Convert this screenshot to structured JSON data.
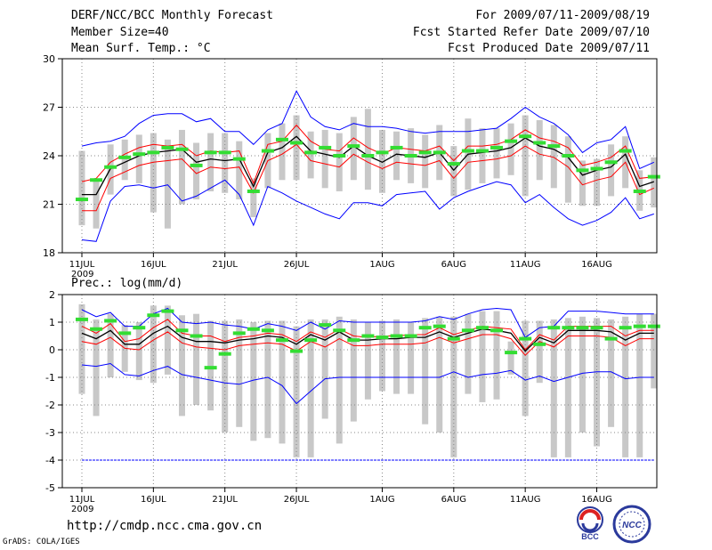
{
  "header": {
    "title": "DERF/NCC/BCC Monthly Forecast",
    "member_size": "Member Size=40",
    "variable": "Mean Surf. Temp.: °C",
    "forecast_period": "For 2009/07/11-2009/08/19",
    "fcst_started": "Fcst Started Refer Date 2009/07/10",
    "fcst_produced": "Fcst Produced Date 2009/07/11"
  },
  "footer": {
    "url": "http://cmdp.ncc.cma.gov.cn",
    "grads": "GrADS: COLA/IGES",
    "logo_bcc": "BCC",
    "logo_ncc": "NCC"
  },
  "colors": {
    "max_line": "#0000ff",
    "min_line": "#0000ff",
    "mean_line": "#000000",
    "spread_lines": "#ff0000",
    "observed": "#33dd33",
    "bars": "#c8c8c8",
    "grid": "#888888"
  },
  "chart_data": [
    {
      "type": "line",
      "title": "Mean Surf. Temp.: °C",
      "ylim": [
        18,
        30
      ],
      "yticks": [
        18,
        21,
        24,
        27,
        30
      ],
      "xticks": [
        {
          "day": 0,
          "label": "11JUL"
        },
        {
          "day": 5,
          "label": "16JUL"
        },
        {
          "day": 10,
          "label": "21JUL"
        },
        {
          "day": 15,
          "label": "26JUL"
        },
        {
          "day": 21,
          "label": "1AUG"
        },
        {
          "day": 26,
          "label": "6AUG"
        },
        {
          "day": 31,
          "label": "11AUG"
        },
        {
          "day": 36,
          "label": "16AUG"
        }
      ],
      "year_label": "2009",
      "series": [
        {
          "name": "max",
          "values": [
            24.6,
            24.8,
            24.9,
            25.2,
            26.0,
            26.5,
            26.6,
            26.6,
            26.1,
            26.3,
            25.5,
            25.5,
            24.7,
            25.6,
            26.0,
            28.0,
            26.4,
            25.8,
            25.6,
            26.0,
            25.8,
            25.8,
            25.7,
            25.5,
            25.4,
            25.5,
            25.5,
            25.5,
            25.6,
            25.7,
            26.3,
            27.0,
            26.4,
            26.0,
            25.3,
            24.2,
            24.8,
            25.0,
            25.8,
            23.2,
            23.6
          ]
        },
        {
          "name": "upper",
          "values": [
            22.4,
            22.6,
            23.6,
            24.1,
            24.5,
            24.7,
            24.6,
            24.7,
            24.0,
            24.3,
            24.2,
            24.3,
            22.3,
            24.7,
            24.9,
            25.9,
            24.9,
            24.4,
            24.3,
            25.1,
            24.5,
            24.1,
            24.5,
            24.4,
            24.3,
            24.6,
            23.7,
            24.6,
            24.6,
            24.7,
            25.0,
            25.6,
            25.1,
            24.9,
            24.5,
            23.4,
            23.6,
            23.9,
            24.6,
            22.6,
            22.7
          ]
        },
        {
          "name": "mean",
          "values": [
            21.6,
            21.6,
            23.2,
            23.6,
            24.0,
            24.2,
            24.3,
            24.4,
            23.6,
            23.8,
            23.7,
            23.8,
            22.1,
            24.2,
            24.5,
            25.2,
            24.3,
            24.1,
            23.9,
            24.6,
            24.0,
            23.6,
            24.1,
            24.0,
            23.9,
            24.2,
            23.1,
            24.1,
            24.2,
            24.3,
            24.5,
            25.1,
            24.6,
            24.4,
            23.9,
            22.8,
            23.1,
            23.3,
            24.1,
            22.1,
            22.4
          ]
        },
        {
          "name": "lower",
          "values": [
            20.6,
            20.6,
            22.6,
            23.0,
            23.4,
            23.6,
            23.7,
            23.8,
            22.9,
            23.3,
            23.2,
            23.3,
            21.7,
            23.7,
            24.1,
            24.7,
            23.7,
            23.5,
            23.3,
            24.1,
            23.6,
            23.2,
            23.6,
            23.5,
            23.4,
            23.7,
            22.6,
            23.6,
            23.7,
            23.8,
            24.0,
            24.6,
            24.1,
            23.9,
            23.3,
            22.2,
            22.5,
            22.7,
            23.6,
            21.6,
            22.0
          ]
        },
        {
          "name": "min",
          "values": [
            18.8,
            18.7,
            21.2,
            22.1,
            22.2,
            22.0,
            22.2,
            21.2,
            21.5,
            22.0,
            22.5,
            21.6,
            19.7,
            22.1,
            21.7,
            21.2,
            20.8,
            20.4,
            20.1,
            21.1,
            21.1,
            20.9,
            21.6,
            21.7,
            21.8,
            20.7,
            21.4,
            21.8,
            22.1,
            22.4,
            22.2,
            21.1,
            21.6,
            20.8,
            20.1,
            19.7,
            20.0,
            20.5,
            21.4,
            20.1,
            20.4
          ]
        },
        {
          "name": "observed",
          "values": [
            21.3,
            22.5,
            23.3,
            23.9,
            24.1,
            24.2,
            24.5,
            24.4,
            23.4,
            24.2,
            24.2,
            23.8,
            21.8,
            24.3,
            25.0,
            24.8,
            24.2,
            24.5,
            24.0,
            24.6,
            24.0,
            24.2,
            24.5,
            24.0,
            24.2,
            24.2,
            23.5,
            24.3,
            24.3,
            24.5,
            24.9,
            25.2,
            24.8,
            24.6,
            24.0,
            23.1,
            23.2,
            23.6,
            24.3,
            21.8,
            22.7
          ]
        }
      ],
      "bars": {
        "low": [
          19.7,
          19.5,
          21.6,
          22.5,
          22.3,
          20.5,
          19.5,
          21.0,
          21.3,
          21.8,
          21.7,
          21.3,
          20.2,
          22.0,
          22.5,
          22.5,
          22.6,
          22.0,
          21.8,
          22.5,
          21.9,
          21.7,
          22.5,
          22.3,
          22.0,
          22.5,
          21.5,
          21.9,
          22.3,
          22.6,
          22.8,
          21.5,
          22.5,
          22.0,
          21.1,
          20.9,
          20.9,
          21.5,
          22.0,
          20.6,
          20.8
        ],
        "high": [
          24.3,
          22.5,
          24.7,
          25.0,
          25.3,
          25.4,
          25.0,
          25.6,
          24.8,
          25.4,
          25.4,
          24.9,
          22.6,
          25.4,
          26.0,
          26.5,
          25.5,
          25.6,
          25.4,
          26.4,
          26.9,
          25.6,
          25.5,
          25.7,
          25.3,
          25.9,
          24.6,
          26.3,
          25.7,
          25.7,
          26.0,
          26.5,
          26.2,
          25.9,
          25.2,
          23.7,
          23.8,
          24.7,
          25.2,
          23.1,
          23.9
        ]
      }
    },
    {
      "type": "line",
      "title": "Prec.: log(mm/d)",
      "ylim": [
        -5,
        2
      ],
      "yticks": [
        -5,
        -4,
        -3,
        -2,
        -1,
        0,
        1,
        2
      ],
      "xticks": [
        {
          "day": 0,
          "label": "11JUL"
        },
        {
          "day": 5,
          "label": "16JUL"
        },
        {
          "day": 10,
          "label": "21JUL"
        },
        {
          "day": 15,
          "label": "26JUL"
        },
        {
          "day": 21,
          "label": "1AUG"
        },
        {
          "day": 26,
          "label": "6AUG"
        },
        {
          "day": 31,
          "label": "11AUG"
        },
        {
          "day": 36,
          "label": "16AUG"
        }
      ],
      "year_label": "2009",
      "series": [
        {
          "name": "max",
          "values": [
            1.45,
            1.2,
            1.35,
            0.85,
            0.85,
            1.3,
            1.5,
            1.0,
            0.95,
            1.0,
            0.9,
            0.85,
            0.75,
            0.95,
            0.85,
            0.7,
            1.0,
            0.75,
            1.05,
            1.0,
            1.0,
            1.0,
            1.0,
            1.0,
            1.05,
            1.2,
            1.1,
            1.3,
            1.45,
            1.5,
            1.45,
            0.45,
            0.8,
            0.85,
            1.4,
            1.4,
            1.4,
            1.35,
            1.3,
            1.3,
            1.3
          ]
        },
        {
          "name": "upper",
          "values": [
            0.85,
            0.6,
            0.95,
            0.3,
            0.4,
            0.8,
            1.1,
            0.6,
            0.5,
            0.5,
            0.3,
            0.45,
            0.5,
            0.6,
            0.55,
            0.3,
            0.65,
            0.45,
            0.75,
            0.5,
            0.45,
            0.5,
            0.5,
            0.55,
            0.55,
            0.8,
            0.55,
            0.7,
            0.85,
            0.8,
            0.75,
            0.0,
            0.55,
            0.35,
            0.85,
            0.85,
            0.85,
            0.85,
            0.5,
            0.7,
            0.7
          ]
        },
        {
          "name": "mean",
          "values": [
            0.6,
            0.4,
            0.7,
            0.2,
            0.2,
            0.6,
            0.85,
            0.45,
            0.3,
            0.3,
            0.25,
            0.35,
            0.4,
            0.5,
            0.45,
            0.2,
            0.55,
            0.35,
            0.65,
            0.35,
            0.35,
            0.4,
            0.4,
            0.45,
            0.45,
            0.65,
            0.45,
            0.6,
            0.75,
            0.7,
            0.6,
            -0.05,
            0.45,
            0.25,
            0.7,
            0.7,
            0.7,
            0.65,
            0.35,
            0.6,
            0.6
          ]
        },
        {
          "name": "lower",
          "values": [
            0.3,
            0.2,
            0.45,
            0.05,
            0.0,
            0.35,
            0.65,
            0.25,
            0.1,
            0.05,
            0.0,
            0.15,
            0.2,
            0.25,
            0.2,
            -0.05,
            0.3,
            0.1,
            0.4,
            0.15,
            0.15,
            0.2,
            0.2,
            0.2,
            0.25,
            0.45,
            0.25,
            0.4,
            0.55,
            0.55,
            0.4,
            -0.2,
            0.3,
            0.1,
            0.5,
            0.5,
            0.5,
            0.45,
            0.15,
            0.4,
            0.4
          ]
        },
        {
          "name": "min",
          "values": [
            -0.55,
            -0.6,
            -0.5,
            -0.9,
            -0.95,
            -0.75,
            -0.6,
            -0.9,
            -1.0,
            -1.1,
            -1.2,
            -1.25,
            -1.1,
            -1.0,
            -1.3,
            -1.95,
            -1.5,
            -1.05,
            -1.0,
            -1.0,
            -1.0,
            -1.0,
            -1.0,
            -1.0,
            -1.0,
            -1.0,
            -0.8,
            -1.0,
            -0.9,
            -0.85,
            -0.75,
            -1.1,
            -0.95,
            -1.15,
            -1.0,
            -0.85,
            -0.8,
            -0.8,
            -1.05,
            -1.0,
            -1.0
          ]
        },
        {
          "name": "observed",
          "values": [
            1.1,
            0.75,
            1.05,
            0.6,
            0.8,
            1.25,
            1.4,
            0.7,
            0.5,
            -0.65,
            -0.15,
            0.6,
            0.75,
            0.7,
            0.35,
            -0.05,
            0.35,
            0.9,
            0.7,
            0.35,
            0.5,
            0.45,
            0.5,
            0.5,
            0.8,
            0.85,
            0.4,
            0.7,
            0.8,
            0.7,
            -0.1,
            0.4,
            0.2,
            0.8,
            0.8,
            0.8,
            0.8,
            0.4,
            0.8,
            0.85,
            0.85
          ]
        },
        {
          "name": "floor",
          "values": [
            -4.0,
            -4.0,
            -4.0,
            -4.0,
            -4.0,
            -4.0,
            -4.0,
            -4.0,
            -4.0,
            -4.0,
            -4.0,
            -4.0,
            -4.0,
            -4.0,
            -4.0,
            -4.0,
            -4.0,
            -4.0,
            -4.0,
            -4.0,
            -4.0,
            -4.0,
            -4.0,
            -4.0,
            -4.0,
            -4.0,
            -4.0,
            -4.0,
            -4.0,
            -4.0,
            -4.0,
            -4.0,
            -4.0,
            -4.0,
            -4.0,
            -4.0,
            -4.0,
            -4.0,
            -4.0,
            -4.0,
            -4.0
          ]
        }
      ],
      "bars": {
        "low": [
          -1.6,
          -2.4,
          -1.0,
          -0.8,
          -1.1,
          -1.2,
          -0.9,
          -2.4,
          -2.0,
          -2.2,
          -3.0,
          -2.8,
          -3.3,
          -3.2,
          -3.4,
          -3.9,
          -3.9,
          -2.5,
          -3.4,
          -2.6,
          -1.8,
          -1.5,
          -1.6,
          -1.6,
          -2.7,
          -3.0,
          -3.9,
          -1.6,
          -1.9,
          -1.8,
          -0.9,
          -2.4,
          -1.2,
          -3.9,
          -3.9,
          -3.0,
          -3.5,
          -2.8,
          -3.9,
          -3.9,
          -1.4
        ],
        "high": [
          1.65,
          1.1,
          1.3,
          0.9,
          1.0,
          1.6,
          1.6,
          1.25,
          1.3,
          1.05,
          1.05,
          1.1,
          1.0,
          1.05,
          1.05,
          0.85,
          1.1,
          1.1,
          1.2,
          1.1,
          1.0,
          1.05,
          1.1,
          1.0,
          1.15,
          1.2,
          1.2,
          1.3,
          1.4,
          1.4,
          0.3,
          1.05,
          1.05,
          1.1,
          1.15,
          1.2,
          1.15,
          1.1,
          1.2,
          1.3,
          1.3
        ]
      }
    }
  ]
}
